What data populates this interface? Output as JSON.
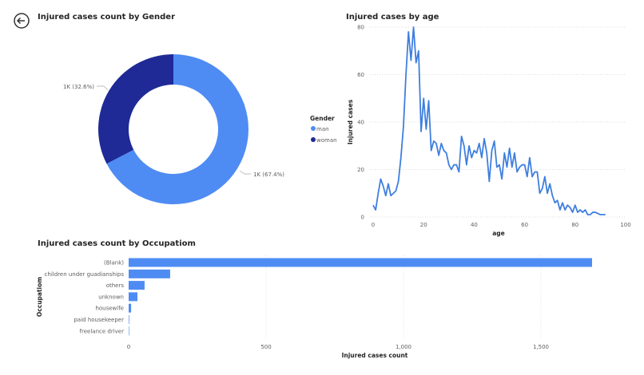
{
  "back_button": {
    "icon": "arrow-left-circle-icon"
  },
  "chart_data": [
    {
      "type": "pie",
      "variant": "donut",
      "title": "Injured cases count by Gender",
      "legend_title": "Gender",
      "legend_position": "right",
      "slices": [
        {
          "name": "man",
          "percent": 67.4,
          "label": "1K (67.4%)",
          "color": "#4e8cf4"
        },
        {
          "name": "woman",
          "percent": 32.6,
          "label": "1K (32.6%)",
          "color": "#1f2a96"
        }
      ]
    },
    {
      "type": "line",
      "title": "Injured cases by age",
      "xlabel": "age",
      "ylabel": "Injured cases",
      "xlim": [
        0,
        100
      ],
      "ylim": [
        0,
        80
      ],
      "xticks": [
        "0",
        "20",
        "40",
        "60",
        "80",
        "100"
      ],
      "yticks": [
        "0",
        "20",
        "40",
        "60",
        "80"
      ],
      "grid": true,
      "color": "#3f7fdf",
      "x": [
        0,
        1,
        2,
        3,
        4,
        5,
        6,
        7,
        8,
        9,
        10,
        11,
        12,
        13,
        14,
        15,
        16,
        17,
        18,
        19,
        20,
        21,
        22,
        23,
        24,
        25,
        26,
        27,
        28,
        29,
        30,
        31,
        32,
        33,
        34,
        35,
        36,
        37,
        38,
        39,
        40,
        41,
        42,
        43,
        44,
        45,
        46,
        47,
        48,
        49,
        50,
        51,
        52,
        53,
        54,
        55,
        56,
        57,
        58,
        59,
        60,
        61,
        62,
        63,
        64,
        65,
        66,
        67,
        68,
        69,
        70,
        71,
        72,
        73,
        74,
        75,
        76,
        77,
        78,
        79,
        80,
        81,
        82,
        83,
        84,
        85,
        86,
        87,
        88,
        89,
        90,
        91,
        92
      ],
      "y": [
        5,
        3,
        10,
        16,
        13,
        9,
        14,
        9,
        10,
        11,
        15,
        25,
        38,
        60,
        78,
        66,
        80,
        65,
        70,
        36,
        50,
        37,
        49,
        28,
        32,
        31,
        26,
        31,
        28,
        27,
        22,
        20,
        22,
        22,
        19,
        34,
        30,
        22,
        30,
        25,
        28,
        27,
        31,
        25,
        33,
        27,
        15,
        28,
        32,
        21,
        22,
        16,
        27,
        21,
        29,
        21,
        27,
        19,
        21,
        22,
        22,
        17,
        25,
        17,
        19,
        19,
        10,
        12,
        17,
        10,
        14,
        9,
        6,
        7,
        3,
        6,
        3,
        5,
        4,
        2,
        5,
        2,
        3,
        2,
        3,
        1,
        1,
        2,
        2,
        1.5,
        1,
        1,
        1
      ]
    },
    {
      "type": "bar",
      "orientation": "horizontal",
      "title": "Injured cases count by Occupatiom",
      "xlabel": "Injured cases count",
      "ylabel": "Occupatiom",
      "xlim": [
        0,
        1700
      ],
      "xticks": [
        "0",
        "500",
        "1,000",
        "1,500"
      ],
      "grid": true,
      "color": "#4e8cf4",
      "categories": [
        "(Blank)",
        "children under guadianships",
        "others",
        "unknown",
        "housewife",
        "paid housekeeper",
        "freelance driver"
      ],
      "values": [
        1686,
        151,
        58,
        32,
        9,
        2,
        1
      ]
    }
  ]
}
